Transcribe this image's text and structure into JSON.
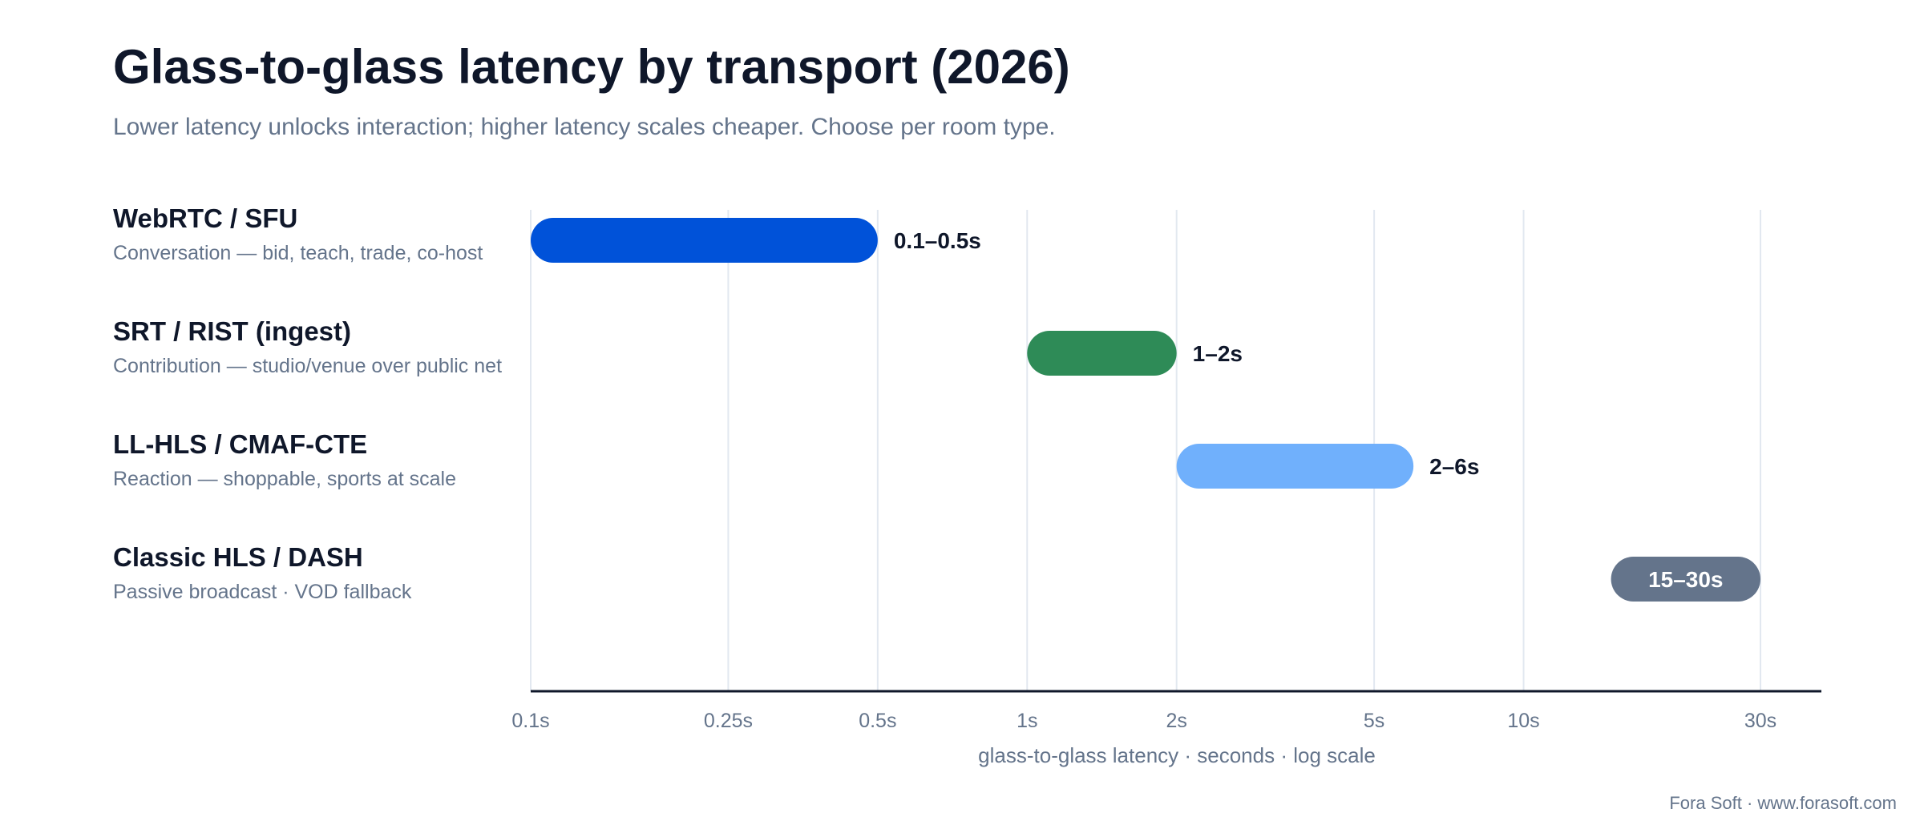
{
  "chart_data": {
    "type": "bar",
    "title": "Glass-to-glass latency by transport (2026)",
    "subtitle": "Lower latency unlocks interaction; higher latency scales cheaper. Choose per room type.",
    "xlabel": "glass-to-glass latency · seconds · log scale",
    "x_scale": "log",
    "xlim": [
      0.1,
      40
    ],
    "grid": true,
    "x_ticks": [
      {
        "value": 0.1,
        "label": "0.1s"
      },
      {
        "value": 0.25,
        "label": "0.25s"
      },
      {
        "value": 0.5,
        "label": "0.5s"
      },
      {
        "value": 1,
        "label": "1s"
      },
      {
        "value": 2,
        "label": "2s"
      },
      {
        "value": 5,
        "label": "5s"
      },
      {
        "value": 10,
        "label": "10s"
      },
      {
        "value": 30,
        "label": "30s"
      }
    ],
    "series": [
      {
        "id": "webrtc",
        "category": "WebRTC / SFU",
        "note": "Conversation — bid, teach, trade, co-host",
        "min": 0.1,
        "max": 0.5,
        "label": "0.1–0.5s",
        "color": "#0052D9",
        "label_position": "outside"
      },
      {
        "id": "srt",
        "category": "SRT / RIST (ingest)",
        "note": "Contribution — studio/venue over public net",
        "min": 1,
        "max": 2,
        "label": "1–2s",
        "color": "#2E8B57",
        "label_position": "outside"
      },
      {
        "id": "llhls",
        "category": "LL-HLS / CMAF-CTE",
        "note": "Reaction — shoppable, sports at scale",
        "min": 2,
        "max": 6,
        "label": "2–6s",
        "color": "#70B0FC",
        "label_position": "outside"
      },
      {
        "id": "hls",
        "category": "Classic HLS / DASH",
        "note": "Passive broadcast · VOD fallback",
        "min": 15,
        "max": 30,
        "label": "15–30s",
        "color": "#64748B",
        "label_position": "inside"
      }
    ]
  },
  "footer": "Fora Soft · www.forasoft.com",
  "colors": {
    "title": "#0F172A",
    "muted": "#64748B",
    "grid": "#E2E8F0",
    "axis": "#0F172A",
    "value_label": "#0F172A"
  }
}
